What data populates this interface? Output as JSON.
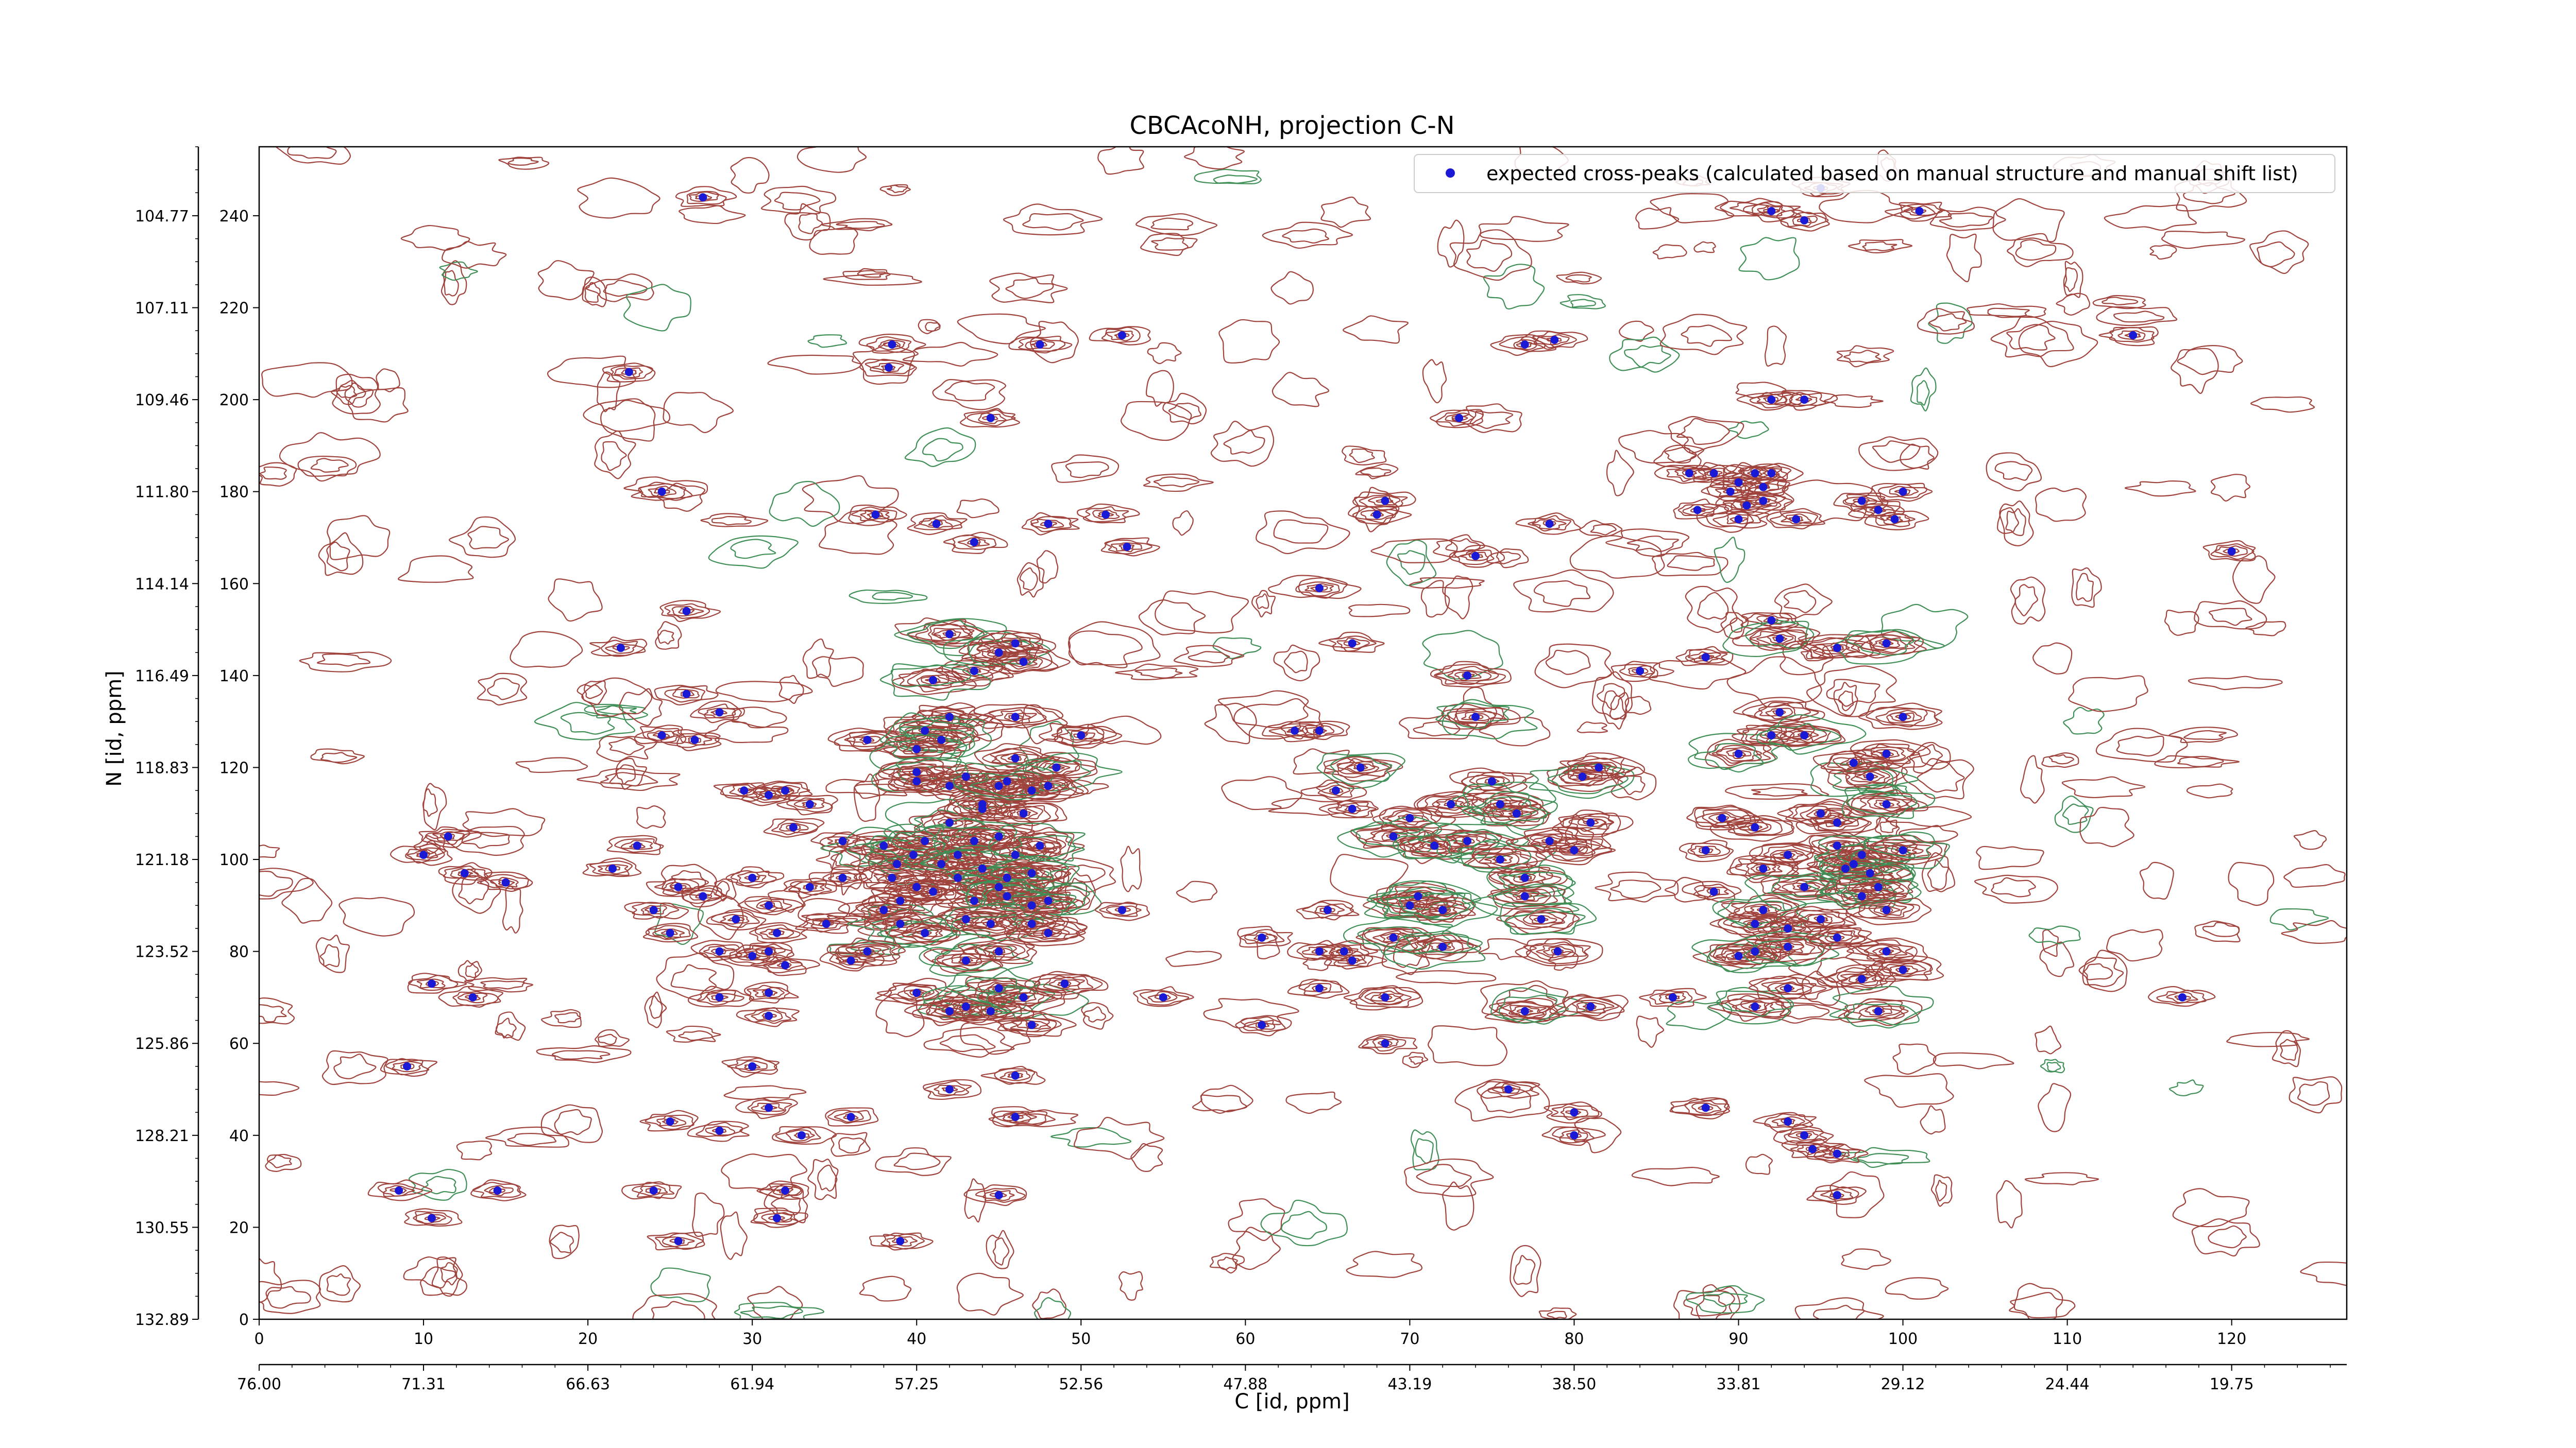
{
  "chart_data": {
    "type": "scatter",
    "title": "CBCAcoNH, projection C-N",
    "xlabel": "C [id, ppm]",
    "ylabel": "N [id, ppm]",
    "xlim": [
      0,
      127
    ],
    "ylim": [
      0,
      255
    ],
    "x_ticks": [
      "0",
      "10",
      "20",
      "30",
      "40",
      "50",
      "60",
      "70",
      "80",
      "90",
      "100",
      "110",
      "120"
    ],
    "x_ppm_ticks": [
      "76.00",
      "71.31",
      "66.63",
      "61.94",
      "57.25",
      "52.56",
      "47.88",
      "43.19",
      "38.50",
      "33.81",
      "29.12",
      "24.44",
      "19.75"
    ],
    "y_ticks": [
      "0",
      "20",
      "40",
      "60",
      "80",
      "100",
      "120",
      "140",
      "160",
      "180",
      "200",
      "220",
      "240"
    ],
    "y_ppm_ticks": [
      "132.89",
      "130.55",
      "128.21",
      "125.86",
      "123.52",
      "121.18",
      "118.83",
      "116.49",
      "114.14",
      "111.80",
      "109.46",
      "107.11",
      "104.77"
    ],
    "legend": {
      "position": "top-right",
      "entries": [
        "expected cross-peaks (calculated based on manual structure and manual shift list)"
      ]
    },
    "colors": {
      "contour_positive": "#a0433d",
      "contour_negative": "#3f8f57",
      "peak_marker": "#1a1ad6"
    },
    "grid": false,
    "peaks": [
      [
        27,
        244
      ],
      [
        38.5,
        212
      ],
      [
        38.3,
        207
      ],
      [
        47.5,
        212
      ],
      [
        52.5,
        214
      ],
      [
        77,
        212
      ],
      [
        78.8,
        213
      ],
      [
        114,
        214
      ],
      [
        22.5,
        206
      ],
      [
        44.5,
        196
      ],
      [
        73,
        196
      ],
      [
        92,
        200
      ],
      [
        94,
        200
      ],
      [
        24.5,
        180
      ],
      [
        37.5,
        175
      ],
      [
        41.2,
        173
      ],
      [
        48,
        173
      ],
      [
        51.5,
        175
      ],
      [
        52.8,
        168
      ],
      [
        43.5,
        169
      ],
      [
        68,
        175
      ],
      [
        68.5,
        178
      ],
      [
        74,
        166
      ],
      [
        78.5,
        173
      ],
      [
        87,
        184
      ],
      [
        88.5,
        184
      ],
      [
        87.5,
        176
      ],
      [
        89.5,
        180
      ],
      [
        90,
        182
      ],
      [
        90.5,
        177
      ],
      [
        90,
        174
      ],
      [
        91.5,
        178
      ],
      [
        91,
        184
      ],
      [
        92,
        184
      ],
      [
        91.5,
        181
      ],
      [
        93.5,
        174
      ],
      [
        97.5,
        178
      ],
      [
        98.5,
        176
      ],
      [
        99.5,
        174
      ],
      [
        100,
        180
      ],
      [
        120,
        167
      ],
      [
        26,
        154
      ],
      [
        64.5,
        159
      ],
      [
        22,
        146
      ],
      [
        66.5,
        147
      ],
      [
        42,
        149
      ],
      [
        43.5,
        141
      ],
      [
        45,
        145
      ],
      [
        46,
        147
      ],
      [
        46.5,
        143
      ],
      [
        41,
        139
      ],
      [
        73.5,
        140
      ],
      [
        84,
        141
      ],
      [
        88,
        144
      ],
      [
        92,
        152
      ],
      [
        92.5,
        148
      ],
      [
        96,
        146
      ],
      [
        99,
        147
      ],
      [
        26,
        136
      ],
      [
        28,
        132
      ],
      [
        24.5,
        127
      ],
      [
        26.5,
        126
      ],
      [
        42,
        131
      ],
      [
        46,
        131
      ],
      [
        37,
        126
      ],
      [
        40.5,
        128
      ],
      [
        41.5,
        126
      ],
      [
        50,
        127
      ],
      [
        63,
        128
      ],
      [
        64.5,
        128
      ],
      [
        46,
        122
      ],
      [
        40,
        124
      ],
      [
        74,
        131
      ],
      [
        90,
        123
      ],
      [
        92,
        127
      ],
      [
        92.5,
        132
      ],
      [
        94,
        127
      ],
      [
        98,
        118
      ],
      [
        100,
        131
      ],
      [
        40,
        119
      ],
      [
        29.5,
        115
      ],
      [
        43,
        118
      ],
      [
        45,
        116
      ],
      [
        48.5,
        120
      ],
      [
        67,
        120
      ],
      [
        66.5,
        111
      ],
      [
        75,
        117
      ],
      [
        80.5,
        118
      ],
      [
        81.5,
        120
      ],
      [
        97,
        121
      ],
      [
        99,
        123
      ],
      [
        32,
        115
      ],
      [
        33.5,
        112
      ],
      [
        40,
        117
      ],
      [
        42,
        116
      ],
      [
        44,
        112
      ],
      [
        46.5,
        110
      ],
      [
        47,
        115
      ],
      [
        45.5,
        117
      ],
      [
        11.5,
        105
      ],
      [
        23,
        103
      ],
      [
        31,
        114
      ],
      [
        32.5,
        107
      ],
      [
        42,
        108
      ],
      [
        44,
        111
      ],
      [
        45,
        105
      ],
      [
        48,
        116
      ],
      [
        65.5,
        115
      ],
      [
        70,
        109
      ],
      [
        72.5,
        112
      ],
      [
        75.5,
        112
      ],
      [
        76.5,
        110
      ],
      [
        81,
        108
      ],
      [
        89,
        109
      ],
      [
        91,
        107
      ],
      [
        95,
        110
      ],
      [
        96,
        108
      ],
      [
        99,
        112
      ],
      [
        10,
        101
      ],
      [
        12.5,
        97
      ],
      [
        15,
        95
      ],
      [
        21.5,
        98
      ],
      [
        35.5,
        104
      ],
      [
        38,
        103
      ],
      [
        38.8,
        99
      ],
      [
        39.8,
        101
      ],
      [
        40.5,
        104
      ],
      [
        41.5,
        99
      ],
      [
        42.5,
        101
      ],
      [
        43.5,
        104
      ],
      [
        44,
        98
      ],
      [
        42.5,
        96
      ],
      [
        46,
        101
      ],
      [
        47.5,
        103
      ],
      [
        45.5,
        96
      ],
      [
        69,
        105
      ],
      [
        71.5,
        103
      ],
      [
        73.5,
        104
      ],
      [
        75.5,
        100
      ],
      [
        78.5,
        104
      ],
      [
        77,
        96
      ],
      [
        80,
        102
      ],
      [
        88,
        102
      ],
      [
        91.5,
        98
      ],
      [
        93,
        101
      ],
      [
        96,
        103
      ],
      [
        96.5,
        98
      ],
      [
        97,
        99
      ],
      [
        98,
        97
      ],
      [
        97.5,
        101
      ],
      [
        100,
        102
      ],
      [
        30,
        96
      ],
      [
        25.5,
        94
      ],
      [
        33.5,
        94
      ],
      [
        35.5,
        96
      ],
      [
        38.5,
        96
      ],
      [
        39,
        91
      ],
      [
        40,
        94
      ],
      [
        43.5,
        91
      ],
      [
        45,
        94
      ],
      [
        48,
        91
      ],
      [
        47,
        97
      ],
      [
        41,
        93
      ],
      [
        45.5,
        92
      ],
      [
        47,
        90
      ],
      [
        24,
        89
      ],
      [
        27,
        92
      ],
      [
        31,
        90
      ],
      [
        29,
        87
      ],
      [
        31.5,
        84
      ],
      [
        34.5,
        86
      ],
      [
        39,
        86
      ],
      [
        38,
        89
      ],
      [
        40.5,
        84
      ],
      [
        43,
        87
      ],
      [
        44.5,
        86
      ],
      [
        47,
        86
      ],
      [
        48,
        84
      ],
      [
        52.5,
        89
      ],
      [
        70,
        90
      ],
      [
        70.5,
        92
      ],
      [
        72,
        89
      ],
      [
        77,
        92
      ],
      [
        78,
        87
      ],
      [
        88.5,
        93
      ],
      [
        91,
        86
      ],
      [
        91.5,
        89
      ],
      [
        93,
        85
      ],
      [
        94,
        94
      ],
      [
        95,
        87
      ],
      [
        97.5,
        92
      ],
      [
        98.5,
        94
      ],
      [
        99,
        89
      ],
      [
        65,
        89
      ],
      [
        25,
        84
      ],
      [
        28,
        80
      ],
      [
        31,
        80
      ],
      [
        32,
        77
      ],
      [
        36,
        78
      ],
      [
        37,
        80
      ],
      [
        43,
        78
      ],
      [
        45,
        80
      ],
      [
        61,
        83
      ],
      [
        69,
        83
      ],
      [
        72,
        81
      ],
      [
        79,
        80
      ],
      [
        90,
        79
      ],
      [
        91,
        80
      ],
      [
        93,
        81
      ],
      [
        96,
        83
      ],
      [
        99,
        80
      ],
      [
        66,
        80
      ],
      [
        64.5,
        80
      ],
      [
        66.5,
        78
      ],
      [
        30,
        79
      ],
      [
        10.5,
        73
      ],
      [
        13,
        70
      ],
      [
        28,
        70
      ],
      [
        31,
        71
      ],
      [
        40,
        71
      ],
      [
        43,
        68
      ],
      [
        44.5,
        67
      ],
      [
        45,
        72
      ],
      [
        46.5,
        70
      ],
      [
        49,
        73
      ],
      [
        55,
        70
      ],
      [
        61,
        64
      ],
      [
        64.5,
        72
      ],
      [
        68.5,
        70
      ],
      [
        77,
        67
      ],
      [
        81,
        68
      ],
      [
        86,
        70
      ],
      [
        91,
        68
      ],
      [
        93,
        72
      ],
      [
        97.5,
        74
      ],
      [
        98.5,
        67
      ],
      [
        100,
        76
      ],
      [
        117,
        70
      ],
      [
        31,
        66
      ],
      [
        42,
        67
      ],
      [
        47,
        64
      ],
      [
        68.5,
        60
      ],
      [
        9,
        55
      ],
      [
        30,
        55
      ],
      [
        42,
        50
      ],
      [
        46,
        53
      ],
      [
        76,
        50
      ],
      [
        80,
        45
      ],
      [
        25,
        43
      ],
      [
        28,
        41
      ],
      [
        31,
        46
      ],
      [
        33,
        40
      ],
      [
        36,
        44
      ],
      [
        46,
        44
      ],
      [
        80,
        40
      ],
      [
        88,
        46
      ],
      [
        93,
        43
      ],
      [
        94,
        40
      ],
      [
        96,
        36
      ],
      [
        94.5,
        37
      ],
      [
        8.5,
        28
      ],
      [
        14.5,
        28
      ],
      [
        24,
        28
      ],
      [
        32,
        28
      ],
      [
        10.5,
        22
      ],
      [
        31.5,
        22
      ],
      [
        45,
        27
      ],
      [
        96,
        27
      ],
      [
        25.5,
        17
      ],
      [
        39,
        17
      ],
      [
        92,
        241
      ],
      [
        101,
        241
      ],
      [
        95,
        246
      ],
      [
        94,
        239
      ]
    ]
  }
}
